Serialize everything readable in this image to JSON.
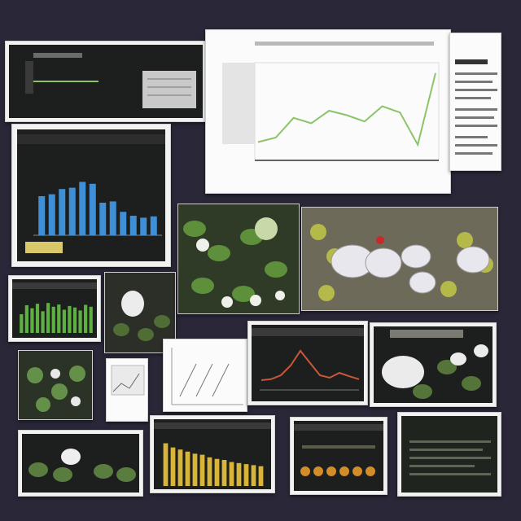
{
  "collage": {
    "background_color": "#2a2838",
    "accent_green": "#8cc46a",
    "accent_blue": "#3f8fd6",
    "accent_yellow": "#d8b43a",
    "accent_orange": "#e07a2a"
  },
  "panels": {
    "line_chart_large": {
      "type": "line",
      "series_color": "#8cc46a",
      "values": [
        0.15,
        0.2,
        0.42,
        0.36,
        0.5,
        0.45,
        0.38,
        0.55,
        0.48,
        0.12,
        0.92
      ]
    },
    "bar_chart_blue": {
      "type": "bar",
      "series_color": "#3f8fd6",
      "values": [
        0.6,
        0.63,
        0.71,
        0.73,
        0.82,
        0.79,
        0.5,
        0.52,
        0.36,
        0.3,
        0.27,
        0.29
      ]
    },
    "bar_chart_green": {
      "type": "bar",
      "series_color": "#5fb043",
      "values": [
        0.5,
        0.74,
        0.66,
        0.78,
        0.58,
        0.8,
        0.7,
        0.76,
        0.62,
        0.72,
        0.68,
        0.6,
        0.75,
        0.7
      ]
    },
    "bar_chart_yellow": {
      "type": "bar",
      "series_color": "#d8b43a",
      "values": [
        0.82,
        0.74,
        0.7,
        0.66,
        0.62,
        0.6,
        0.55,
        0.52,
        0.5,
        0.46,
        0.44,
        0.42,
        0.4,
        0.38
      ]
    },
    "line_chart_peak": {
      "type": "line",
      "series_color": "#c9573a",
      "values": [
        0.2,
        0.22,
        0.3,
        0.5,
        0.8,
        0.55,
        0.3,
        0.25,
        0.35,
        0.28,
        0.22
      ]
    }
  }
}
